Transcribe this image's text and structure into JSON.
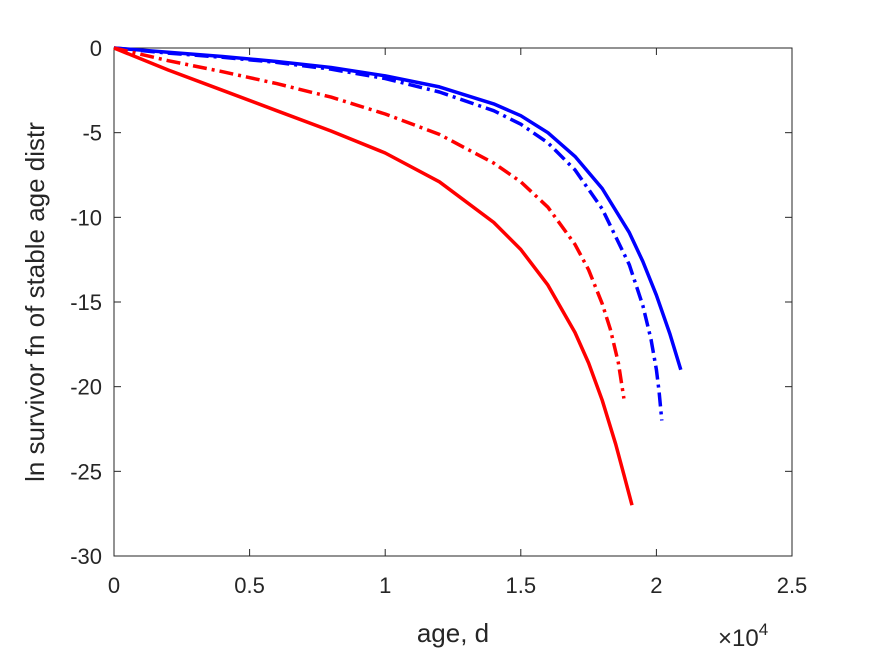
{
  "chart_data": {
    "type": "line",
    "title": "",
    "xlabel": "age, d",
    "ylabel": "ln survivor fn of stable age distr",
    "x_exponent_label": "×10",
    "x_exponent_power": "4",
    "xlim": [
      0,
      25000
    ],
    "ylim": [
      -30,
      0
    ],
    "xticks": [
      0,
      5000,
      10000,
      15000,
      20000,
      25000
    ],
    "xtick_labels": [
      "0",
      "0.5",
      "1",
      "1.5",
      "2",
      "2.5"
    ],
    "yticks": [
      0,
      -5,
      -10,
      -15,
      -20,
      -25,
      -30
    ],
    "ytick_labels": [
      "0",
      "-5",
      "-10",
      "-15",
      "-20",
      "-25",
      "-30"
    ],
    "grid": false,
    "legend": false,
    "series": [
      {
        "color": "#0000ff",
        "style": "solid",
        "x": [
          0,
          2000,
          4000,
          6000,
          8000,
          10000,
          12000,
          14000,
          15000,
          16000,
          17000,
          18000,
          19000,
          19500,
          20000,
          20500,
          20900
        ],
        "y": [
          0,
          -0.25,
          -0.5,
          -0.8,
          -1.15,
          -1.65,
          -2.3,
          -3.3,
          -4.0,
          -5.0,
          -6.4,
          -8.3,
          -10.9,
          -12.6,
          -14.6,
          -16.9,
          -19.0
        ]
      },
      {
        "color": "#0000ff",
        "style": "dashdot",
        "x": [
          0,
          2000,
          4000,
          6000,
          8000,
          10000,
          12000,
          14000,
          15000,
          16000,
          17000,
          18000,
          19000,
          19500,
          19800,
          20000,
          20100,
          20200
        ],
        "y": [
          0,
          -0.3,
          -0.55,
          -0.85,
          -1.25,
          -1.8,
          -2.6,
          -3.7,
          -4.5,
          -5.6,
          -7.2,
          -9.5,
          -12.8,
          -15.2,
          -17.2,
          -19.0,
          -20.3,
          -22.0
        ]
      },
      {
        "color": "#ff0000",
        "style": "dashdot",
        "x": [
          0,
          2000,
          4000,
          6000,
          8000,
          10000,
          12000,
          14000,
          15000,
          16000,
          17000,
          17500,
          18000,
          18300,
          18600,
          18800
        ],
        "y": [
          0,
          -0.75,
          -1.4,
          -2.1,
          -2.9,
          -3.9,
          -5.1,
          -6.8,
          -7.9,
          -9.4,
          -11.6,
          -13.1,
          -15.1,
          -16.6,
          -18.6,
          -20.7
        ]
      },
      {
        "color": "#ff0000",
        "style": "solid",
        "x": [
          0,
          2000,
          4000,
          6000,
          8000,
          10000,
          12000,
          14000,
          15000,
          16000,
          17000,
          17500,
          18000,
          18500,
          18800,
          19000,
          19100
        ],
        "y": [
          0,
          -1.3,
          -2.5,
          -3.7,
          -4.9,
          -6.2,
          -7.9,
          -10.3,
          -11.9,
          -14.0,
          -16.8,
          -18.6,
          -20.8,
          -23.4,
          -25.2,
          -26.4,
          -27.0
        ]
      }
    ]
  }
}
